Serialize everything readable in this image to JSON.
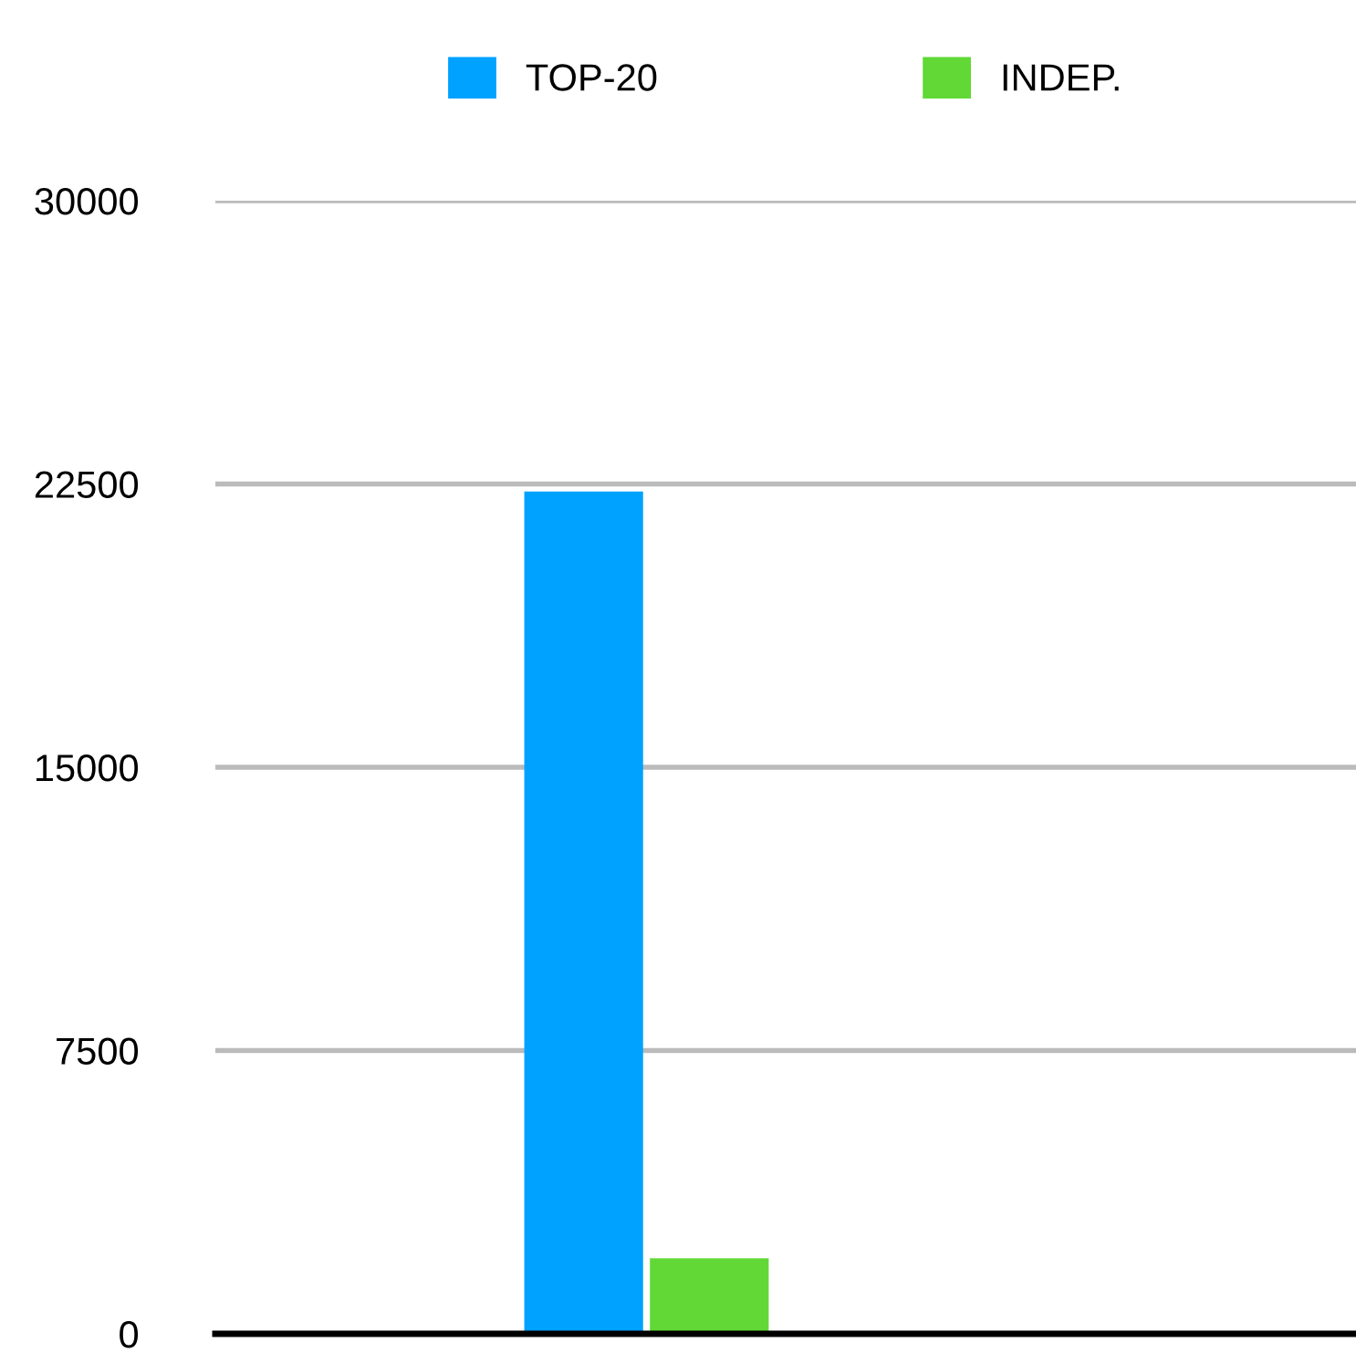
{
  "chart_data": {
    "type": "bar",
    "categories": [
      null
    ],
    "series": [
      {
        "name": "TOP-20",
        "color": "#00a2ff",
        "values": [
          22300
        ]
      },
      {
        "name": "INDEP.",
        "color": "#61d836",
        "values": [
          2000
        ]
      }
    ],
    "ylim": [
      0,
      30000
    ],
    "yticks": [
      0,
      7500,
      15000,
      22500,
      30000
    ],
    "grid": "y",
    "legend": "top"
  }
}
